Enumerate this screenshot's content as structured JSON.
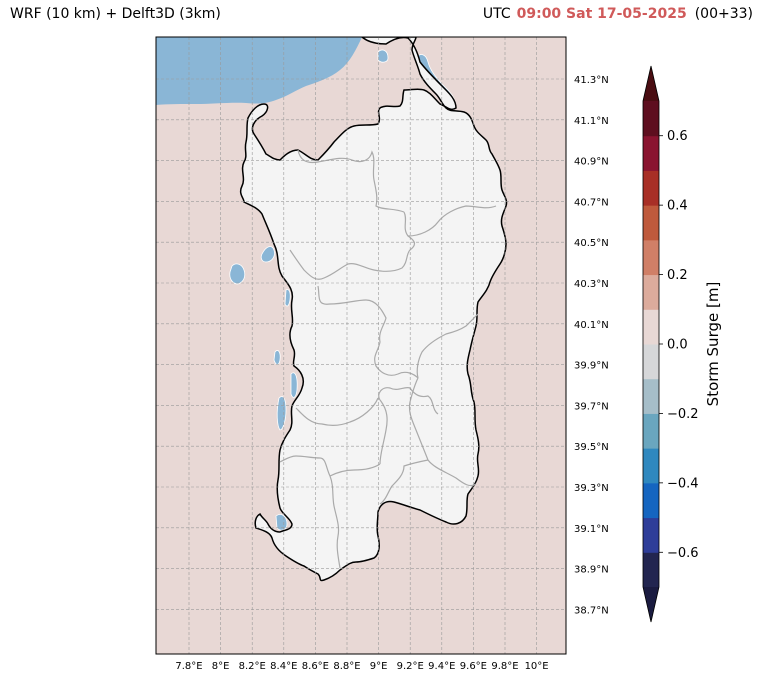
{
  "header": {
    "model_title": "WRF (10 km) + Delft3D (3km)",
    "utc_label": "UTC",
    "valid_time": "09:00 Sat 17-05-2025",
    "lead_time": "(00+33)"
  },
  "map": {
    "lon_ticks": [
      "7.8°E",
      "8°E",
      "8.2°E",
      "8.4°E",
      "8.6°E",
      "8.8°E",
      "9°E",
      "9.2°E",
      "9.4°E",
      "9.6°E",
      "9.8°E",
      "10°E"
    ],
    "lat_ticks": [
      "41.3°N",
      "41.1°N",
      "40.9°N",
      "40.7°N",
      "40.5°N",
      "40.3°N",
      "40.1°N",
      "39.9°N",
      "39.7°N",
      "39.5°N",
      "39.3°N",
      "39.1°N",
      "38.9°N",
      "38.7°N"
    ],
    "sea_color": "#e8d8d5",
    "land_color": "#f4f4f4",
    "negative_surge_color": "#8ab6d6",
    "grid": true
  },
  "colorbar": {
    "label": "Storm Surge [m]",
    "tick_labels": [
      "0.6",
      "0.4",
      "0.2",
      "0.0",
      "−0.2",
      "−0.4",
      "−0.6"
    ],
    "tick_values": [
      0.6,
      0.4,
      0.2,
      0.0,
      -0.2,
      -0.4,
      -0.6
    ],
    "range": [
      -0.7,
      0.7
    ],
    "extend": "both",
    "colors": [
      "#222550",
      "#2e3d99",
      "#1565c0",
      "#2f88bf",
      "#6aa6bf",
      "#a6bec9",
      "#d6d7d9",
      "#e8d8d5",
      "#dcab9c",
      "#d07f67",
      "#bf5a3c",
      "#a82f26",
      "#8a1430",
      "#5e0e1f"
    ],
    "over_color": "#4a0d12",
    "under_color": "#1a1b40"
  }
}
